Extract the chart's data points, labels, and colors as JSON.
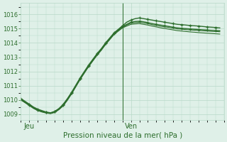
{
  "title": "Pression niveau de la mer( hPa )",
  "ylabel_ticks": [
    1009,
    1010,
    1011,
    1012,
    1013,
    1014,
    1015,
    1016
  ],
  "ylim": [
    1008.6,
    1016.8
  ],
  "xlim": [
    0,
    48
  ],
  "x_tick_positions": [
    2,
    26
  ],
  "x_tick_labels": [
    "Jeu",
    "Ven"
  ],
  "vline_x": 24,
  "bg_color": "#dff0e8",
  "grid_color": "#b8d8c8",
  "line_color": "#2d6e2d",
  "series": [
    {
      "y": [
        1010.1,
        1009.9,
        1009.7,
        1009.5,
        1009.35,
        1009.25,
        1009.15,
        1009.1,
        1009.2,
        1009.4,
        1009.7,
        1010.1,
        1010.55,
        1011.05,
        1011.55,
        1012.0,
        1012.45,
        1012.85,
        1013.25,
        1013.6,
        1014.0,
        1014.35,
        1014.7,
        1014.95,
        1015.2,
        1015.45,
        1015.6,
        1015.7,
        1015.75,
        1015.7,
        1015.65,
        1015.6,
        1015.55,
        1015.5,
        1015.45,
        1015.4,
        1015.35,
        1015.3,
        1015.28,
        1015.25,
        1015.22,
        1015.2,
        1015.18,
        1015.15,
        1015.12,
        1015.1,
        1015.08,
        1015.05
      ],
      "marker": true,
      "lw": 1.0
    },
    {
      "y": [
        1010.05,
        1009.85,
        1009.65,
        1009.45,
        1009.3,
        1009.2,
        1009.12,
        1009.08,
        1009.18,
        1009.38,
        1009.65,
        1010.05,
        1010.5,
        1011.0,
        1011.5,
        1011.95,
        1012.4,
        1012.8,
        1013.2,
        1013.55,
        1013.95,
        1014.3,
        1014.65,
        1014.9,
        1015.15,
        1015.3,
        1015.45,
        1015.5,
        1015.52,
        1015.48,
        1015.42,
        1015.35,
        1015.3,
        1015.25,
        1015.2,
        1015.15,
        1015.1,
        1015.05,
        1015.02,
        1015.0,
        1014.98,
        1014.96,
        1014.94,
        1014.92,
        1014.9,
        1014.88,
        1014.86,
        1014.85
      ],
      "marker": true,
      "lw": 1.0
    },
    {
      "y": [
        1010.0,
        1009.82,
        1009.63,
        1009.43,
        1009.28,
        1009.18,
        1009.1,
        1009.06,
        1009.15,
        1009.35,
        1009.62,
        1010.02,
        1010.47,
        1010.97,
        1011.47,
        1011.92,
        1012.37,
        1012.77,
        1013.17,
        1013.52,
        1013.92,
        1014.27,
        1014.62,
        1014.87,
        1015.1,
        1015.25,
        1015.38,
        1015.42,
        1015.44,
        1015.4,
        1015.35,
        1015.28,
        1015.22,
        1015.17,
        1015.12,
        1015.08,
        1015.03,
        1014.98,
        1014.96,
        1014.93,
        1014.91,
        1014.89,
        1014.87,
        1014.85,
        1014.83,
        1014.81,
        1014.8,
        1014.78
      ],
      "marker": false,
      "lw": 0.8
    },
    {
      "y": [
        1010.0,
        1009.8,
        1009.6,
        1009.4,
        1009.25,
        1009.15,
        1009.08,
        1009.04,
        1009.12,
        1009.32,
        1009.58,
        1009.98,
        1010.43,
        1010.93,
        1011.43,
        1011.88,
        1012.33,
        1012.73,
        1013.13,
        1013.48,
        1013.88,
        1014.23,
        1014.58,
        1014.82,
        1015.05,
        1015.18,
        1015.3,
        1015.33,
        1015.35,
        1015.3,
        1015.25,
        1015.18,
        1015.12,
        1015.06,
        1015.01,
        1014.96,
        1014.91,
        1014.86,
        1014.83,
        1014.8,
        1014.77,
        1014.75,
        1014.72,
        1014.7,
        1014.68,
        1014.66,
        1014.64,
        1014.62
      ],
      "marker": false,
      "lw": 0.8
    }
  ]
}
